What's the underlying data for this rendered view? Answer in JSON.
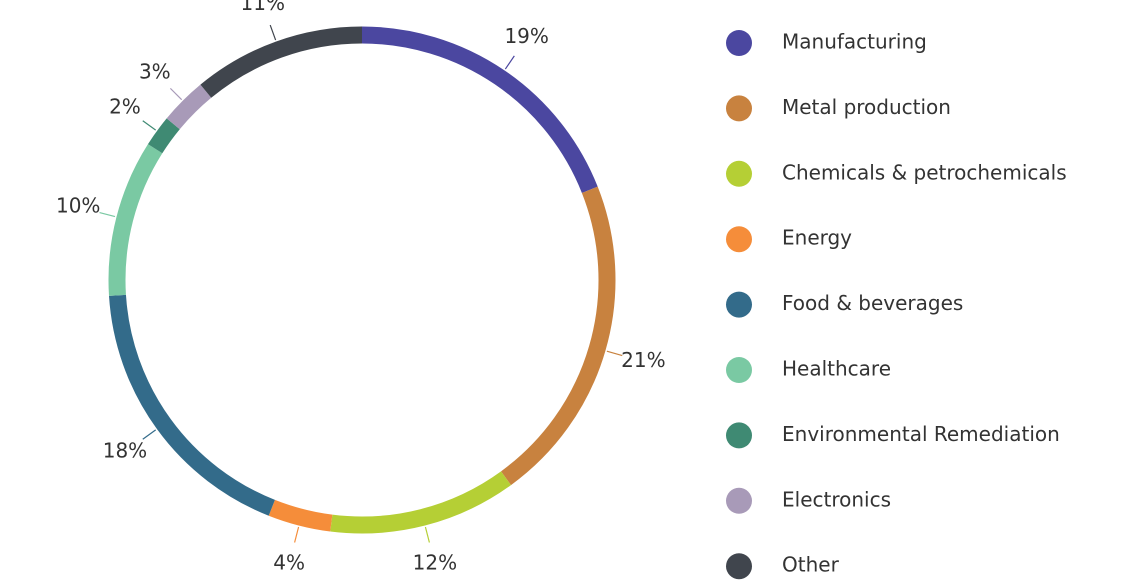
{
  "chart_data": {
    "type": "donut",
    "categories": [
      "Manufacturing",
      "Metal production",
      "Chemicals & petrochemicals",
      "Energy",
      "Food & beverages",
      "Healthcare",
      "Environmental Remediation",
      "Electronics",
      "Other"
    ],
    "values": [
      19,
      21,
      12,
      4,
      18,
      10,
      2,
      3,
      11
    ],
    "value_labels": [
      "19%",
      "21%",
      "12%",
      "4%",
      "18%",
      "10%",
      "2%",
      "3%",
      "11%"
    ],
    "colors": [
      "#4b47a0",
      "#c8823f",
      "#b5cf35",
      "#f58d3a",
      "#336b8a",
      "#7ac9a3",
      "#3f8a73",
      "#a89ab8",
      "#40454d"
    ],
    "legend": "right"
  }
}
